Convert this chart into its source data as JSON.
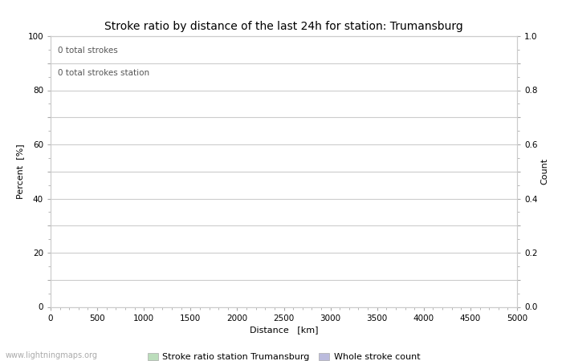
{
  "title": "Stroke ratio by distance of the last 24h for station: Trumansburg",
  "xlabel": "Distance   [km]",
  "ylabel_left": "Percent  [%]",
  "ylabel_right": "Count",
  "annotation_line1": "0 total strokes",
  "annotation_line2": "0 total strokes station",
  "xlim": [
    0,
    5000
  ],
  "ylim_left": [
    0,
    100
  ],
  "ylim_right": [
    0,
    1.0
  ],
  "xticks": [
    0,
    500,
    1000,
    1500,
    2000,
    2500,
    3000,
    3500,
    4000,
    4500,
    5000
  ],
  "yticks_left": [
    0,
    10,
    20,
    30,
    40,
    50,
    60,
    70,
    80,
    90,
    100
  ],
  "yticks_right": [
    0.0,
    0.1,
    0.2,
    0.3,
    0.4,
    0.5,
    0.6,
    0.7,
    0.8,
    0.9,
    1.0
  ],
  "ytick_labels_left": [
    "0",
    "",
    "20",
    "",
    "40",
    "",
    "60",
    "",
    "80",
    "",
    "100"
  ],
  "ytick_labels_right": [
    "0.0",
    "",
    "0.2",
    "",
    "0.4",
    "",
    "0.6",
    "",
    "0.8",
    "",
    "1.0"
  ],
  "grid_color": "#cccccc",
  "background_color": "#ffffff",
  "legend_label_green": "Stroke ratio station Trumansburg",
  "legend_label_blue": "Whole stroke count",
  "legend_color_green": "#bbddbb",
  "legend_color_blue": "#bbbbdd",
  "title_fontsize": 10,
  "axis_label_fontsize": 8,
  "tick_fontsize": 7.5,
  "annotation_fontsize": 7.5,
  "legend_fontsize": 8,
  "watermark": "www.lightningmaps.org",
  "watermark_fontsize": 7
}
